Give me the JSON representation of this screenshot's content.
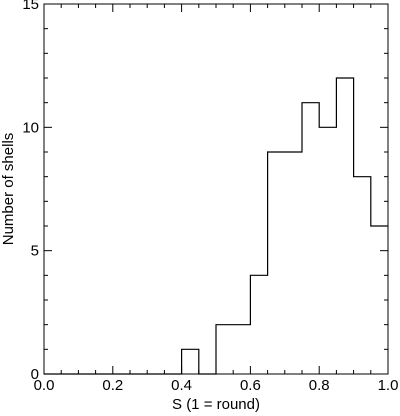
{
  "chart_data": {
    "type": "bar",
    "style": "step-histogram",
    "xlabel": "S (1 = round)",
    "ylabel": "Number of shells",
    "xlim": [
      0.0,
      1.0
    ],
    "ylim": [
      0,
      15
    ],
    "xticks": [
      0.0,
      0.2,
      0.4,
      0.6,
      0.8,
      1.0
    ],
    "xtick_labels": [
      "0.0",
      "0.2",
      "0.4",
      "0.6",
      "0.8",
      "1.0"
    ],
    "yticks": [
      0,
      5,
      10,
      15
    ],
    "ytick_labels": [
      "0",
      "5",
      "10",
      "15"
    ],
    "bin_edges": [
      0.0,
      0.05,
      0.1,
      0.15,
      0.2,
      0.25,
      0.3,
      0.35,
      0.4,
      0.45,
      0.5,
      0.55,
      0.6,
      0.65,
      0.7,
      0.75,
      0.8,
      0.85,
      0.9,
      0.95,
      1.0
    ],
    "values": [
      0,
      0,
      0,
      0,
      0,
      0,
      0,
      0,
      1,
      0,
      2,
      2,
      4,
      9,
      9,
      11,
      10,
      12,
      8,
      6
    ],
    "grid": false,
    "line_color": "#000000"
  }
}
